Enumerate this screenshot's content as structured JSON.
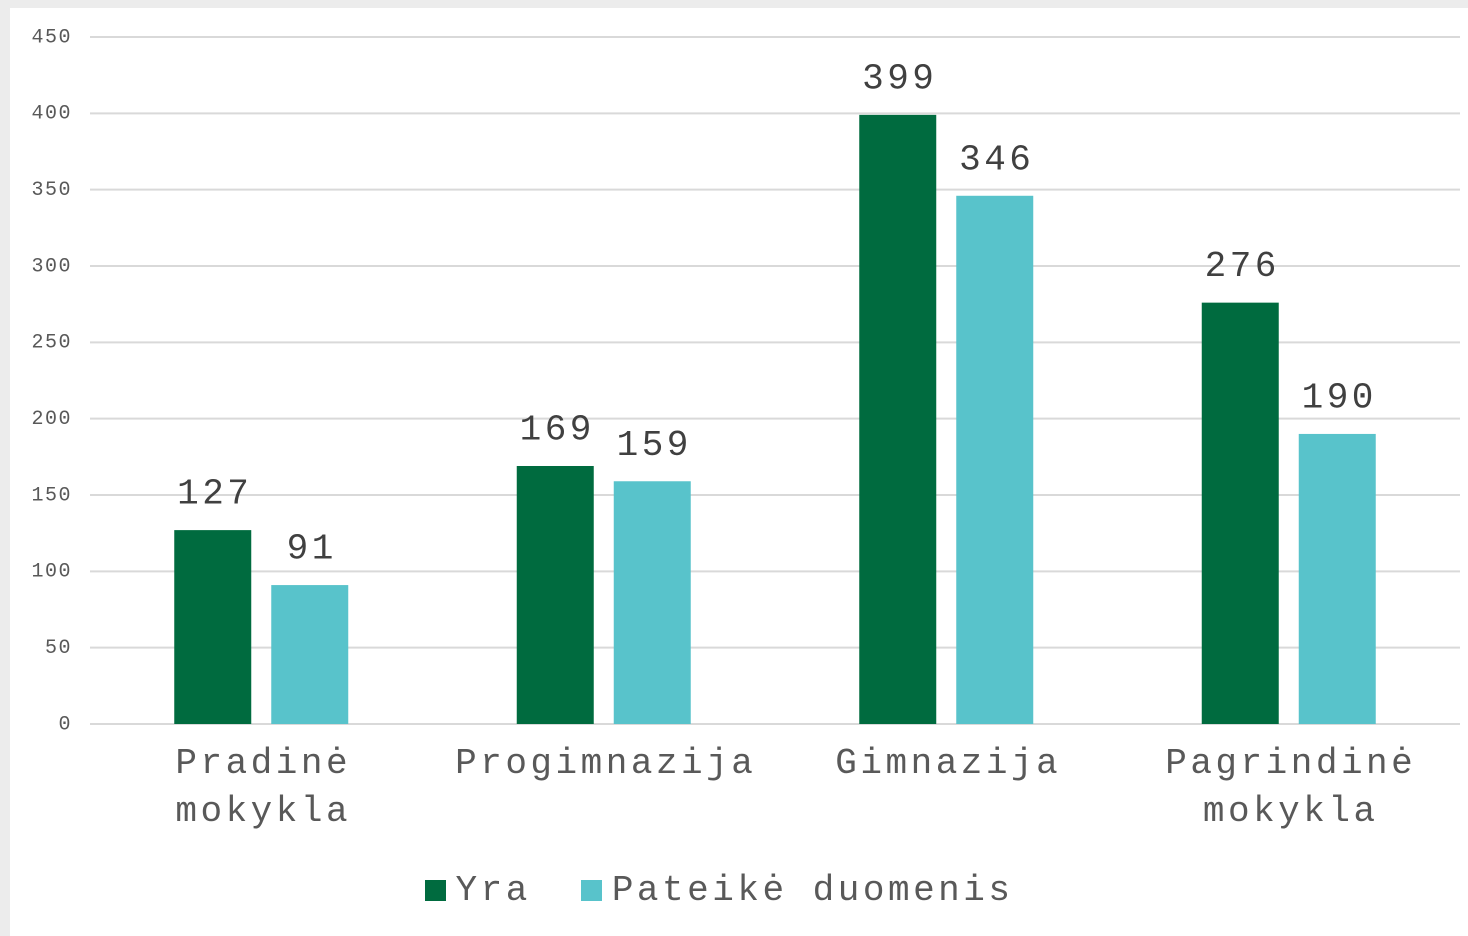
{
  "chart_data": {
    "type": "bar",
    "categories": [
      "Pradinė mokykla",
      "Progimnazija",
      "Gimnazija",
      "Pagrindinė mokykla"
    ],
    "series": [
      {
        "name": "Yra",
        "color": "#006b3f",
        "values": [
          127,
          169,
          399,
          276
        ]
      },
      {
        "name": "Pateikė duomenis",
        "color": "#58c3cb",
        "values": [
          91,
          159,
          346,
          190
        ]
      }
    ],
    "ylim": [
      0,
      450
    ],
    "yticks": [
      0,
      50,
      100,
      150,
      200,
      250,
      300,
      350,
      400,
      450
    ],
    "grid": true,
    "legend": "bottom"
  }
}
